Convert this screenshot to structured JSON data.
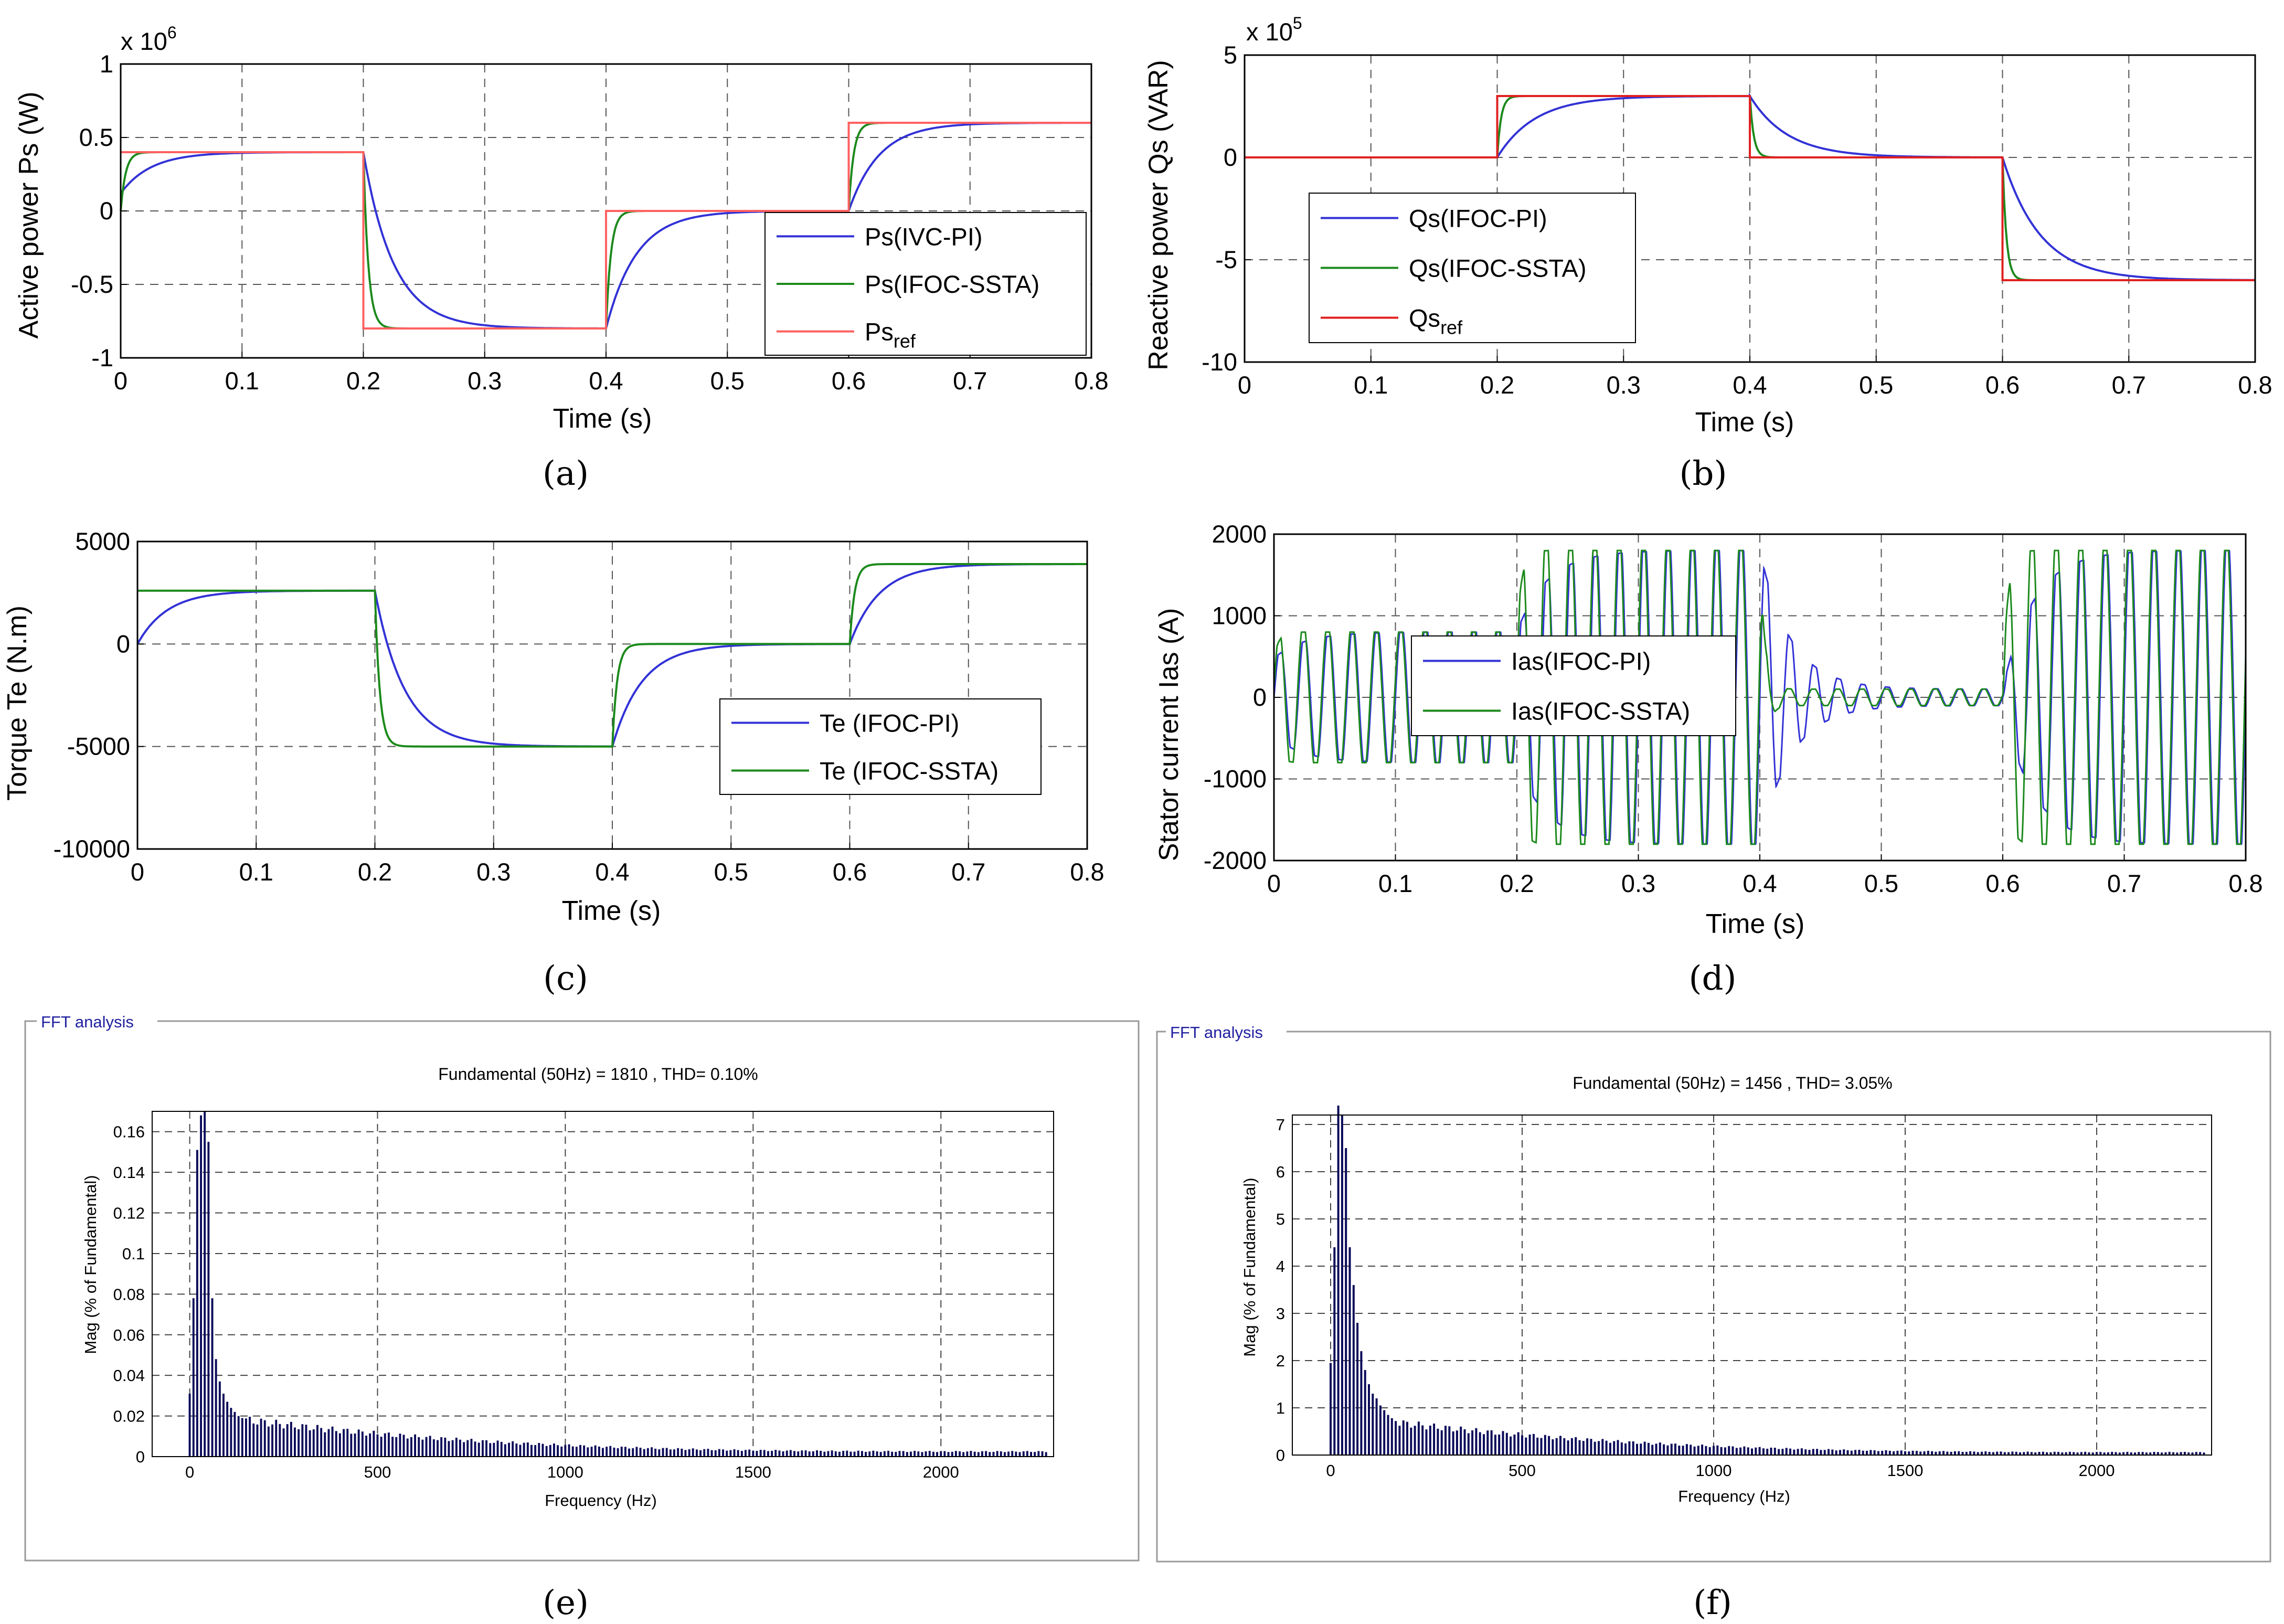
{
  "chart_data": [
    {
      "id": "a",
      "type": "line",
      "caption": "(a)",
      "xlabel": "Time (s)",
      "ylabel": "Active power Ps (W)",
      "exponent": "x 10",
      "exponent_power": "6",
      "xlim": [
        0,
        0.8
      ],
      "ylim": [
        -1,
        1
      ],
      "xticks": [
        "0",
        "0.1",
        "0.2",
        "0.3",
        "0.4",
        "0.5",
        "0.6",
        "0.7",
        "0.8"
      ],
      "yticks": [
        "-1",
        "-0.5",
        "0",
        "0.5",
        "1"
      ],
      "legend_position": "bottom-right",
      "series": [
        {
          "name": "Ps(IVC-PI)",
          "name_sub": "",
          "color": "#3232d6",
          "kind": "first_order",
          "start": 0.12,
          "tau": 0.025
        },
        {
          "name": "Ps(IFOC-SSTA)",
          "name_sub": "",
          "color": "#1c8a1c",
          "kind": "first_order",
          "start": 0.0,
          "tau": 0.004
        },
        {
          "name": "Ps",
          "name_sub": "ref",
          "color": "#ff6060",
          "kind": "step",
          "start": 0.4,
          "tau": 0
        }
      ],
      "segments": [
        {
          "t0": 0.0,
          "t1": 0.2,
          "ref": 0.4
        },
        {
          "t0": 0.2,
          "t1": 0.4,
          "ref": -0.8
        },
        {
          "t0": 0.4,
          "t1": 0.6,
          "ref": 0.0
        },
        {
          "t0": 0.6,
          "t1": 0.8,
          "ref": 0.6
        }
      ]
    },
    {
      "id": "b",
      "type": "line",
      "caption": "(b)",
      "xlabel": "Time (s)",
      "ylabel": "Reactive power Qs (VAR)",
      "exponent": "x 10",
      "exponent_power": "5",
      "xlim": [
        0,
        0.8
      ],
      "ylim": [
        -10,
        5
      ],
      "xticks": [
        "0",
        "0.1",
        "0.2",
        "0.3",
        "0.4",
        "0.5",
        "0.6",
        "0.7",
        "0.8"
      ],
      "yticks": [
        "-10",
        "-5",
        "0",
        "5"
      ],
      "legend_position": "middle-left",
      "series": [
        {
          "name": "Qs(IFOC-PI)",
          "name_sub": "",
          "color": "#3232d6",
          "kind": "first_order",
          "start": 0.0,
          "tau": 0.03
        },
        {
          "name": "Qs(IFOC-SSTA)",
          "name_sub": "",
          "color": "#1c8a1c",
          "kind": "first_order",
          "start": 0.0,
          "tau": 0.003
        },
        {
          "name": "Qs",
          "name_sub": "ref",
          "color": "#e02020",
          "kind": "step",
          "start": 0.0,
          "tau": 0
        }
      ],
      "segments": [
        {
          "t0": 0.0,
          "t1": 0.2,
          "ref": 0.0
        },
        {
          "t0": 0.2,
          "t1": 0.4,
          "ref": 3.0
        },
        {
          "t0": 0.4,
          "t1": 0.6,
          "ref": 0.0
        },
        {
          "t0": 0.6,
          "t1": 0.8,
          "ref": -6.0
        }
      ]
    },
    {
      "id": "c",
      "type": "line",
      "caption": "(c)",
      "xlabel": "Time (s)",
      "ylabel": "Torque Te (N.m)",
      "xlim": [
        0,
        0.8
      ],
      "ylim": [
        -10000,
        5000
      ],
      "xticks": [
        "0",
        "0.1",
        "0.2",
        "0.3",
        "0.4",
        "0.5",
        "0.6",
        "0.7",
        "0.8"
      ],
      "yticks": [
        "-10000",
        "-5000",
        "0",
        "5000"
      ],
      "legend_position": "bottom-right",
      "series": [
        {
          "name": "Te (IFOC-PI)",
          "name_sub": "",
          "color": "#3232d6",
          "kind": "first_order",
          "start": 0,
          "tau": 0.025
        },
        {
          "name": "Te (IFOC-SSTA)",
          "name_sub": "",
          "color": "#1c8a1c",
          "kind": "first_order",
          "start": 2600,
          "tau": 0.004
        }
      ],
      "segments": [
        {
          "t0": 0.0,
          "t1": 0.2,
          "ref": 2600
        },
        {
          "t0": 0.2,
          "t1": 0.4,
          "ref": -5000
        },
        {
          "t0": 0.4,
          "t1": 0.6,
          "ref": 0
        },
        {
          "t0": 0.6,
          "t1": 0.8,
          "ref": 3900
        }
      ]
    },
    {
      "id": "d",
      "type": "line",
      "caption": "(d)",
      "xlabel": "Time (s)",
      "ylabel": "Stator current Ias (A)",
      "xlim": [
        0,
        0.8
      ],
      "ylim": [
        -2000,
        2000
      ],
      "xticks": [
        "0",
        "0.1",
        "0.2",
        "0.3",
        "0.4",
        "0.5",
        "0.6",
        "0.7",
        "0.8"
      ],
      "yticks": [
        "-2000",
        "-1000",
        "0",
        "1000",
        "2000"
      ],
      "legend_position": "middle-left",
      "frequency_hz": 50,
      "series": [
        {
          "name": "Ias(IFOC-PI)",
          "name_sub": "",
          "color": "#3232d6",
          "kind": "sine",
          "start": 0,
          "tau": 0.025
        },
        {
          "name": "Ias(IFOC-SSTA)",
          "name_sub": "",
          "color": "#1c8a1c",
          "kind": "sine",
          "start": 0,
          "tau": 0.004
        }
      ],
      "segments": [
        {
          "t0": 0.0,
          "t1": 0.2,
          "ref": 800
        },
        {
          "t0": 0.2,
          "t1": 0.4,
          "ref": 1800
        },
        {
          "t0": 0.4,
          "t1": 0.6,
          "ref": 100
        },
        {
          "t0": 0.6,
          "t1": 0.8,
          "ref": 1800
        }
      ]
    },
    {
      "id": "e",
      "type": "bar",
      "caption": "(e)",
      "panel_title": "FFT analysis",
      "info": "Fundamental (50Hz) = 1810 , THD= 0.10%",
      "xlabel": "Frequency (Hz)",
      "ylabel": "Mag (% of Fundamental)",
      "xlim": [
        -100,
        2300
      ],
      "ylim": [
        0,
        0.17
      ],
      "xticks": [
        "0",
        "500",
        "1000",
        "1500",
        "2000"
      ],
      "xtick_values": [
        0,
        500,
        1000,
        1500,
        2000
      ],
      "yticks": [
        "0",
        "0.02",
        "0.04",
        "0.06",
        "0.08",
        "0.1",
        "0.12",
        "0.14",
        "0.16"
      ],
      "ytick_values": [
        0,
        0.02,
        0.04,
        0.06,
        0.08,
        0.1,
        0.12,
        0.14,
        0.16
      ],
      "bar_color": "#0a0a5a",
      "harmonic_spacing_hz": 10,
      "head_values": [
        0.031,
        0.078,
        0.151,
        0.168,
        0.17,
        0.155,
        0.078,
        0.048,
        0.037,
        0.031,
        0.027,
        0.024,
        0.022,
        0.02,
        0.019
      ],
      "tail_start": 0.018,
      "tail_end": 0.0025,
      "max_freq": 2280
    },
    {
      "id": "f",
      "type": "bar",
      "caption": "(f)",
      "panel_title": "FFT analysis",
      "info": "Fundamental (50Hz) = 1456 , THD= 3.05%",
      "xlabel": "Frequency (Hz)",
      "ylabel": "Mag (% of Fundamental)",
      "xlim": [
        -100,
        2300
      ],
      "ylim": [
        0,
        7.2
      ],
      "xticks": [
        "0",
        "500",
        "1000",
        "1500",
        "2000"
      ],
      "xtick_values": [
        0,
        500,
        1000,
        1500,
        2000
      ],
      "yticks": [
        "0",
        "1",
        "2",
        "3",
        "4",
        "5",
        "6",
        "7"
      ],
      "ytick_values": [
        0,
        1,
        2,
        3,
        4,
        5,
        6,
        7
      ],
      "bar_color": "#0a0a5a",
      "harmonic_spacing_hz": 10,
      "head_values": [
        1.95,
        4.4,
        7.4,
        7.2,
        6.5,
        4.4,
        3.6,
        2.8,
        2.2,
        1.8,
        1.5,
        1.3,
        1.2,
        1.05,
        0.95,
        0.85,
        0.78,
        0.72
      ],
      "tail_start": 0.68,
      "tail_end": 0.06,
      "max_freq": 2280
    }
  ]
}
